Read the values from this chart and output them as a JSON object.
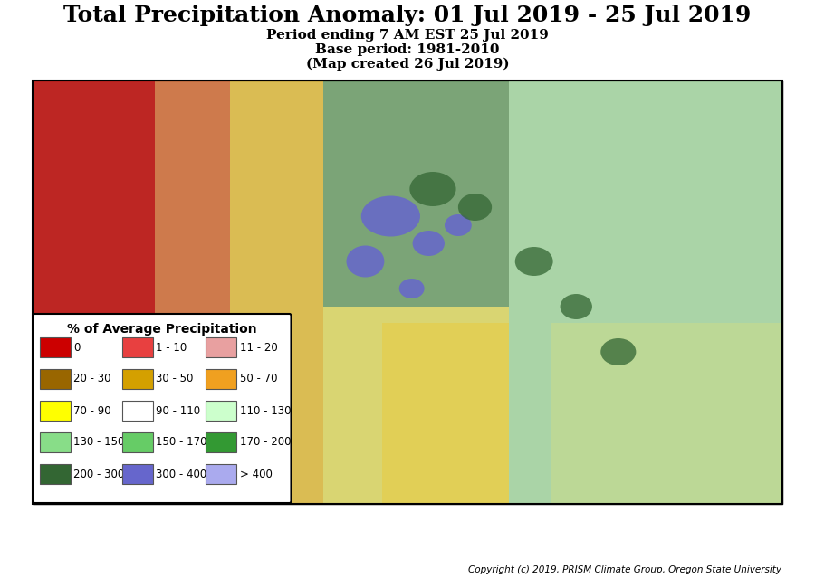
{
  "title_line1": "Total Precipitation Anomaly: 01 Jul 2019 - 25 Jul 2019",
  "title_line2": "Period ending 7 AM EST 25 Jul 2019",
  "title_line3": "Base period: 1981-2010",
  "title_line4": "(Map created 26 Jul 2019)",
  "copyright": "Copyright (c) 2019, PRISM Climate Group, Oregon State University",
  "legend_title": "% of Average Precipitation",
  "legend_colors": [
    "#cc0000",
    "#e84040",
    "#e8a0a0",
    "#996600",
    "#d4a000",
    "#f0a020",
    "#ffff00",
    "#ffffff",
    "#ccffcc",
    "#88dd88",
    "#66cc66",
    "#339933",
    "#336633",
    "#6666cc",
    "#aaaaee"
  ],
  "legend_labels": [
    "0",
    "1 - 10",
    "11 - 20",
    "20 - 30",
    "30 - 50",
    "50 - 70",
    "70 - 90",
    "90 - 110",
    "110 - 130",
    "130 - 150",
    "150 - 170",
    "170 - 200",
    "200 - 300",
    "300 - 400",
    "> 400"
  ],
  "bg_color": "#ffffff"
}
